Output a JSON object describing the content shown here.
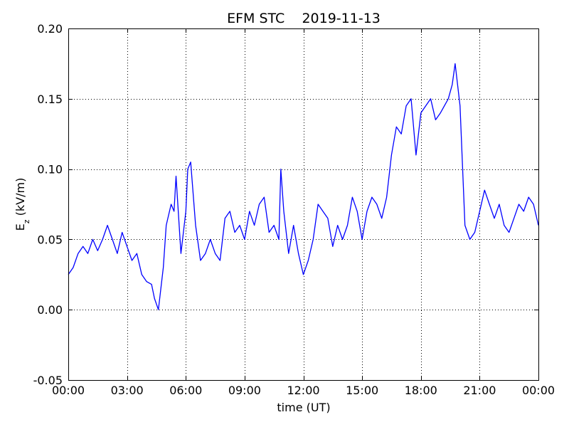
{
  "chart_data": {
    "type": "line",
    "title": "EFM STC    2019-11-13",
    "xlabel": "time (UT)",
    "ylabel_main": "E",
    "ylabel_sub": "z",
    "ylabel_unit": " (kV/m)",
    "xlim_hours": [
      0,
      24
    ],
    "ylim": [
      -0.05,
      0.2
    ],
    "x_ticks": [
      {
        "hour": 0,
        "label": "00:00"
      },
      {
        "hour": 3,
        "label": "03:00"
      },
      {
        "hour": 6,
        "label": "06:00"
      },
      {
        "hour": 9,
        "label": "09:00"
      },
      {
        "hour": 12,
        "label": "12:00"
      },
      {
        "hour": 15,
        "label": "15:00"
      },
      {
        "hour": 18,
        "label": "18:00"
      },
      {
        "hour": 21,
        "label": "21:00"
      },
      {
        "hour": 24,
        "label": "00:00"
      }
    ],
    "y_ticks": [
      {
        "value": -0.05,
        "label": "-0.05"
      },
      {
        "value": 0.0,
        "label": "0.00"
      },
      {
        "value": 0.05,
        "label": "0.05"
      },
      {
        "value": 0.1,
        "label": "0.10"
      },
      {
        "value": 0.15,
        "label": "0.15"
      },
      {
        "value": 0.2,
        "label": "0.20"
      }
    ],
    "grid": true,
    "grid_style": "dotted",
    "series": [
      {
        "color": "#0000ff",
        "x_hours": [
          0.0,
          0.25,
          0.5,
          0.75,
          1.0,
          1.25,
          1.5,
          1.75,
          2.0,
          2.25,
          2.5,
          2.75,
          3.0,
          3.25,
          3.5,
          3.75,
          4.0,
          4.25,
          4.4,
          4.6,
          4.85,
          5.0,
          5.25,
          5.4,
          5.5,
          5.75,
          6.0,
          6.1,
          6.25,
          6.5,
          6.75,
          7.0,
          7.25,
          7.5,
          7.75,
          8.0,
          8.25,
          8.5,
          8.75,
          9.0,
          9.25,
          9.5,
          9.75,
          10.0,
          10.25,
          10.5,
          10.75,
          10.85,
          11.0,
          11.25,
          11.5,
          11.75,
          12.0,
          12.25,
          12.5,
          12.75,
          13.0,
          13.25,
          13.5,
          13.75,
          14.0,
          14.25,
          14.5,
          14.75,
          15.0,
          15.25,
          15.5,
          15.75,
          16.0,
          16.25,
          16.5,
          16.75,
          17.0,
          17.25,
          17.5,
          17.75,
          18.0,
          18.25,
          18.5,
          18.75,
          19.0,
          19.2,
          19.4,
          19.6,
          19.75,
          20.0,
          20.25,
          20.5,
          20.75,
          21.0,
          21.25,
          21.5,
          21.75,
          22.0,
          22.25,
          22.5,
          22.75,
          23.0,
          23.25,
          23.5,
          23.75,
          24.0
        ],
        "y": [
          0.025,
          0.03,
          0.04,
          0.045,
          0.04,
          0.05,
          0.042,
          0.05,
          0.06,
          0.05,
          0.04,
          0.055,
          0.045,
          0.035,
          0.04,
          0.025,
          0.02,
          0.018,
          0.008,
          0.0,
          0.03,
          0.06,
          0.075,
          0.07,
          0.095,
          0.04,
          0.07,
          0.1,
          0.105,
          0.06,
          0.035,
          0.04,
          0.05,
          0.04,
          0.035,
          0.065,
          0.07,
          0.055,
          0.06,
          0.05,
          0.07,
          0.06,
          0.075,
          0.08,
          0.055,
          0.06,
          0.05,
          0.1,
          0.07,
          0.04,
          0.06,
          0.04,
          0.025,
          0.035,
          0.05,
          0.075,
          0.07,
          0.065,
          0.045,
          0.06,
          0.05,
          0.06,
          0.08,
          0.07,
          0.05,
          0.07,
          0.08,
          0.075,
          0.065,
          0.08,
          0.11,
          0.13,
          0.125,
          0.145,
          0.15,
          0.11,
          0.14,
          0.145,
          0.15,
          0.135,
          0.14,
          0.145,
          0.15,
          0.16,
          0.175,
          0.145,
          0.06,
          0.05,
          0.055,
          0.07,
          0.085,
          0.075,
          0.065,
          0.075,
          0.06,
          0.055,
          0.065,
          0.075,
          0.07,
          0.08,
          0.075,
          0.06
        ]
      }
    ]
  }
}
